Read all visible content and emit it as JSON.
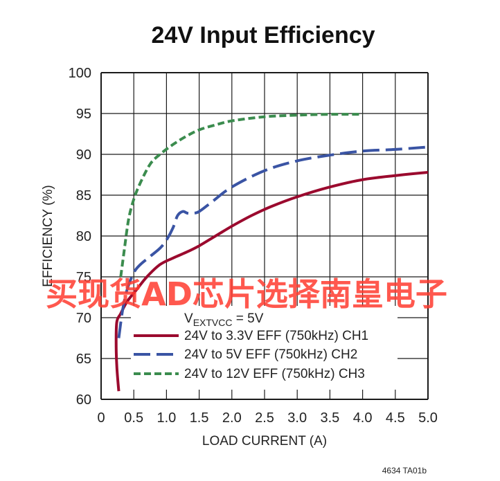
{
  "chart_data": {
    "type": "line",
    "title": "24V Input Efficiency",
    "xlabel": "LOAD CURRENT (A)",
    "ylabel": "EFFICIENCY (%)",
    "xlim": [
      0,
      5
    ],
    "ylim": [
      60,
      100
    ],
    "x_ticks": [
      "0",
      "0.5",
      "1.0",
      "1.5",
      "2.0",
      "2.5",
      "3.0",
      "3.5",
      "4.0",
      "4.5",
      "5.0"
    ],
    "y_ticks": [
      "60",
      "65",
      "70",
      "75",
      "80",
      "85",
      "90",
      "95",
      "100"
    ],
    "grid": true,
    "legend_header": {
      "main": "V",
      "sub": "EXTVCC",
      "suffix": " = 5V"
    },
    "legend_placement": "bottom-left",
    "series": [
      {
        "name": "24V to 3.3V EFF (750kHz) CH1",
        "color": "#9b0a2e",
        "dash": "solid",
        "x": [
          0.27,
          0.24,
          0.23,
          0.24,
          0.3,
          0.4,
          0.55,
          0.7,
          0.9,
          1.1,
          1.3,
          1.5,
          1.75,
          2.0,
          2.3,
          2.6,
          3.0,
          3.5,
          4.0,
          4.5,
          5.0
        ],
        "y": [
          61.0,
          64.0,
          67.0,
          69.5,
          70.5,
          72.0,
          73.5,
          75.0,
          76.5,
          77.3,
          78.0,
          78.8,
          80.0,
          81.2,
          82.5,
          83.6,
          84.8,
          86.0,
          86.9,
          87.4,
          87.8
        ]
      },
      {
        "name": "24V to 5V EFF (750kHz) CH2",
        "color": "#3a54a4",
        "dash": "dashed",
        "x": [
          0.27,
          0.33,
          0.4,
          0.5,
          0.6,
          0.75,
          0.9,
          1.0,
          1.1,
          1.17,
          1.25,
          1.32,
          1.4,
          1.5,
          1.7,
          2.0,
          2.5,
          3.0,
          3.5,
          4.0,
          4.5,
          5.0
        ],
        "y": [
          67.5,
          71.0,
          73.5,
          75.5,
          76.5,
          77.5,
          78.5,
          79.5,
          81.0,
          82.5,
          83.0,
          82.8,
          82.8,
          83.0,
          84.2,
          86.0,
          88.0,
          89.2,
          89.9,
          90.4,
          90.6,
          90.9
        ]
      },
      {
        "name": "24V to 12V EFF (750kHz) CH3",
        "color": "#3b8c4e",
        "dash": "dashed",
        "x": [
          0.3,
          0.35,
          0.42,
          0.5,
          0.6,
          0.75,
          0.9,
          1.1,
          1.3,
          1.5,
          1.75,
          2.0,
          2.5,
          3.0,
          3.5,
          4.0
        ],
        "y": [
          75.0,
          78.0,
          82.0,
          84.5,
          86.5,
          88.8,
          90.0,
          91.2,
          92.2,
          93.0,
          93.6,
          94.1,
          94.6,
          94.8,
          94.9,
          94.9
        ]
      }
    ]
  },
  "watermark_text": "买现货AD芯片选择南皇电子",
  "figure_id": "4634 TA01b"
}
